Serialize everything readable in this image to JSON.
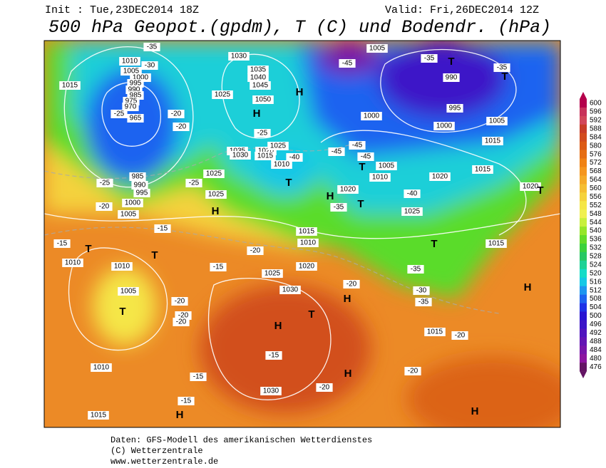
{
  "header": {
    "init": "Init : Tue,23DEC2014 18Z",
    "valid": "Valid: Fri,26DEC2014 12Z",
    "title": "500 hPa Geopot.(gpdm), T (C) und Bodendr. (hPa)"
  },
  "footer": [
    "Daten: GFS-Modell des amerikanischen Wetterdienstes",
    "(C) Wetterzentrale",
    "www.wetterzentrale.de"
  ],
  "colorbar": {
    "levels": [
      600,
      596,
      592,
      588,
      584,
      580,
      576,
      572,
      568,
      564,
      560,
      556,
      552,
      548,
      544,
      540,
      536,
      532,
      528,
      524,
      520,
      516,
      512,
      508,
      504,
      500,
      496,
      492,
      488,
      484,
      480,
      476
    ],
    "colors": [
      "#b4004b",
      "#c8325a",
      "#d2465a",
      "#c83c28",
      "#d24b1e",
      "#dc5a14",
      "#e66e14",
      "#f08214",
      "#f5961e",
      "#f5aa28",
      "#f5be32",
      "#f5d23c",
      "#f5e646",
      "#f0f050",
      "#c8f03c",
      "#96e628",
      "#64dc28",
      "#3cd23c",
      "#28c864",
      "#1ed296",
      "#14dcc8",
      "#14c8e6",
      "#1e96f0",
      "#1e64f0",
      "#1e32e6",
      "#2814d2",
      "#3c14c8",
      "#5014be",
      "#6414b4",
      "#7814aa",
      "#8c14a0",
      "#641464"
    ]
  },
  "map": {
    "labels": [
      "1010",
      "1005",
      "1000",
      "995",
      "990",
      "985",
      "975",
      "970",
      "965",
      "1015",
      "-35",
      "-30",
      "-25",
      "-20",
      "-20",
      "985",
      "990",
      "995",
      "1000",
      "1005",
      "-25",
      "-20",
      "1030",
      "1035",
      "1040",
      "1045",
      "1050",
      "1025",
      "H",
      "H",
      "-25",
      "1035",
      "1030",
      "1020",
      "1025",
      "1015",
      "-40",
      "1010",
      "T",
      "1025",
      "1025",
      "H",
      "-25",
      "1005",
      "-45",
      "-35",
      "T",
      "990",
      "-35",
      "T",
      "995",
      "1000",
      "1000",
      "1005",
      "1015",
      "-45",
      "-45",
      "-45",
      "T",
      "1005",
      "1010",
      "1020",
      "1015",
      "1020",
      "T",
      "H",
      "1020",
      "-35",
      "T",
      "-40",
      "1025",
      "T",
      "1015",
      "-35",
      "-30",
      "H",
      "-35",
      "1015",
      "-20",
      "-15",
      "-15",
      "T",
      "T",
      "1010",
      "1010",
      "-20",
      "-15",
      "1005",
      "T",
      "-20",
      "-20",
      "-20",
      "1025",
      "1030",
      "1015",
      "1010",
      "1020",
      "-20",
      "H",
      "T",
      "H",
      "-15",
      "H",
      "-20",
      "-20",
      "-15",
      "1030",
      "-15",
      "H",
      "1010",
      "1015",
      "H"
    ]
  }
}
